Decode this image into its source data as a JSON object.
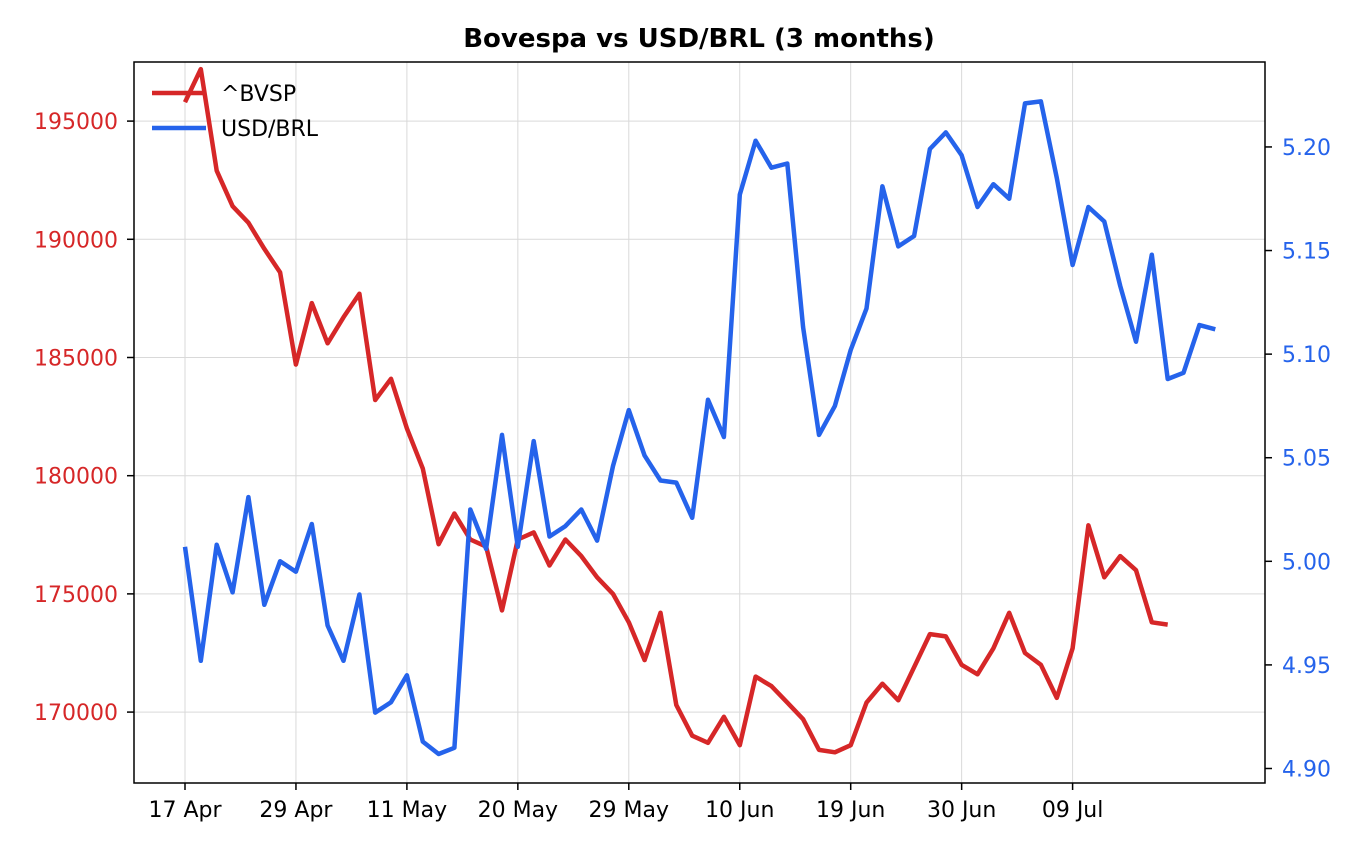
{
  "chart_data": {
    "type": "line",
    "title": "Bovespa vs USD/BRL (3 months)",
    "xlabel": "",
    "ylabel_left": "",
    "ylabel_right": "",
    "x_tick_labels": [
      "17 Apr",
      "29 Apr",
      "11 May",
      "20 May",
      "29 May",
      "10 Jun",
      "19 Jun",
      "30 Jun",
      "09 Jul"
    ],
    "left_axis": {
      "ylim": [
        167000,
        197500
      ],
      "ticks": [
        170000,
        175000,
        180000,
        185000,
        190000,
        195000
      ],
      "tick_labels": [
        "170000",
        "175000",
        "180000",
        "185000",
        "190000",
        "195000"
      ],
      "color": "#d62728"
    },
    "right_axis": {
      "ylim": [
        4.893,
        5.241
      ],
      "ticks": [
        4.9,
        4.95,
        5.0,
        5.05,
        5.1,
        5.15,
        5.2
      ],
      "tick_labels": [
        "4.90",
        "4.95",
        "5.00",
        "5.05",
        "5.10",
        "5.15",
        "5.20"
      ],
      "color": "#2563eb"
    },
    "grid": true,
    "legend_position": "top-left",
    "series": [
      {
        "name": "^BVSP",
        "axis": "left",
        "color": "#d62728",
        "values": [
          195800,
          197200,
          192900,
          191400,
          190700,
          189600,
          188600,
          184700,
          187300,
          185600,
          186700,
          187700,
          183200,
          184100,
          182000,
          180300,
          177100,
          178400,
          177300,
          177000,
          174300,
          177300,
          177600,
          176200,
          177300,
          176600,
          175700,
          175000,
          173800,
          172200,
          174200,
          170300,
          169000,
          168700,
          169800,
          168600,
          171500,
          171100,
          170400,
          169700,
          168400,
          168300,
          168600,
          170400,
          171200,
          170500,
          171900,
          173300,
          173200,
          172000,
          171600,
          172700,
          174200,
          172500,
          172000,
          170600,
          172700,
          177900,
          175700,
          176600,
          176000,
          173800,
          173700
        ]
      },
      {
        "name": "USD/BRL",
        "axis": "right",
        "color": "#2563eb",
        "values": [
          5.007,
          4.952,
          5.008,
          4.985,
          5.031,
          4.979,
          5.0,
          4.995,
          5.018,
          4.969,
          4.952,
          4.984,
          4.927,
          4.932,
          4.945,
          4.913,
          4.907,
          4.91,
          5.025,
          5.006,
          5.061,
          5.007,
          5.058,
          5.012,
          5.017,
          5.025,
          5.01,
          5.046,
          5.073,
          5.051,
          5.039,
          5.038,
          5.021,
          5.078,
          5.06,
          5.177,
          5.203,
          5.19,
          5.192,
          5.113,
          5.061,
          5.075,
          5.102,
          5.122,
          5.181,
          5.152,
          5.157,
          5.199,
          5.207,
          5.196,
          5.171,
          5.182,
          5.175,
          5.221,
          5.222,
          5.185,
          5.143,
          5.171,
          5.164,
          5.133,
          5.106,
          5.148,
          5.088,
          5.091,
          5.114,
          5.112
        ]
      }
    ]
  }
}
